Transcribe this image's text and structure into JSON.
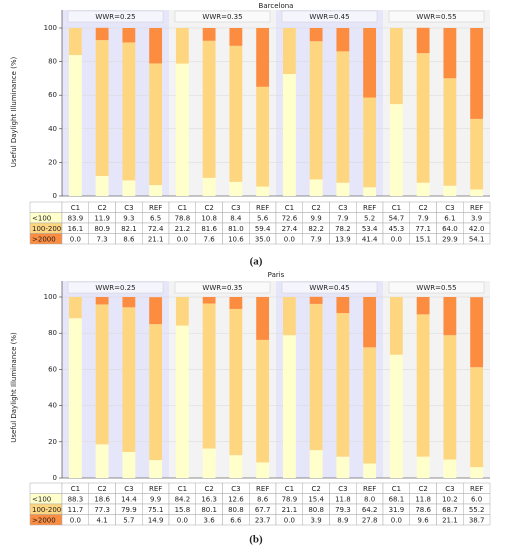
{
  "chart_data": [
    {
      "type": "bar",
      "stacked": true,
      "title": "Barcelona",
      "ylabel": "Useful Daylight Illuminance (%)",
      "caption": "(a)",
      "groups": [
        "WWR=0.25",
        "WWR=0.35",
        "WWR=0.45",
        "WWR=0.55"
      ],
      "categories": [
        "C1",
        "C2",
        "C3",
        "REF",
        "C1",
        "C2",
        "C3",
        "REF",
        "C1",
        "C2",
        "C3",
        "REF",
        "C1",
        "C2",
        "C3",
        "REF"
      ],
      "ylim": [
        0,
        100
      ],
      "yticks": [
        0,
        20,
        40,
        60,
        80,
        100
      ],
      "grid": true,
      "series": [
        {
          "name": "<100",
          "color": "#ffffcc",
          "values": [
            83.9,
            11.9,
            9.3,
            6.5,
            78.8,
            10.8,
            8.4,
            5.6,
            72.6,
            9.9,
            7.9,
            5.2,
            54.7,
            7.9,
            6.1,
            3.9
          ],
          "value_labels": [
            "83.9",
            "11.9",
            "9.3",
            "6.5",
            "78.8",
            "10.8",
            "8.4",
            "5.6",
            "72.6",
            "9.9",
            "7.9",
            "5.2",
            "54.7",
            "7.9",
            "6.1",
            "3.9"
          ]
        },
        {
          "name": "100-2000",
          "color": "#fed680",
          "values": [
            16.1,
            80.9,
            82.1,
            72.4,
            21.2,
            81.6,
            81.0,
            59.4,
            27.4,
            82.2,
            78.2,
            53.4,
            45.3,
            77.1,
            64.0,
            42.0
          ],
          "value_labels": [
            "16.1",
            "80.9",
            "82.1",
            "72.4",
            "21.2",
            "81.6",
            "81.0",
            "59.4",
            "27.4",
            "82.2",
            "78.2",
            "53.4",
            "45.3",
            "77.1",
            "64.0",
            "42.0"
          ]
        },
        {
          "name": ">2000",
          "color": "#fb8c40",
          "values": [
            0.0,
            7.3,
            8.6,
            21.1,
            0.0,
            7.6,
            10.6,
            35.0,
            0.0,
            7.9,
            13.9,
            41.4,
            0.0,
            15.1,
            29.9,
            54.1
          ],
          "value_labels": [
            "0.0",
            "7.3",
            "8.6",
            "21.1",
            "0.0",
            "7.6",
            "10.6",
            "35.0",
            "0.0",
            "7.9",
            "13.9",
            "41.4",
            "0.0",
            "15.1",
            "29.9",
            "54.1"
          ]
        }
      ]
    },
    {
      "type": "bar",
      "stacked": true,
      "title": "Paris",
      "ylabel": "Useful Daylight Illuminance (%)",
      "caption": "(b)",
      "groups": [
        "WWR=0.25",
        "WWR=0.35",
        "WWR=0.45",
        "WWR=0.55"
      ],
      "categories": [
        "C1",
        "C2",
        "C3",
        "REF",
        "C1",
        "C2",
        "C3",
        "REF",
        "C1",
        "C2",
        "C3",
        "REF",
        "C1",
        "C2",
        "C3",
        "REF"
      ],
      "ylim": [
        0,
        100
      ],
      "yticks": [
        0,
        20,
        40,
        60,
        80,
        100
      ],
      "grid": true,
      "series": [
        {
          "name": "<100",
          "color": "#ffffcc",
          "values": [
            88.3,
            18.6,
            14.4,
            9.9,
            84.2,
            16.3,
            12.6,
            8.6,
            78.9,
            15.4,
            11.8,
            8.0,
            68.1,
            11.8,
            10.2,
            6.0
          ],
          "value_labels": [
            "88.3",
            "18.6",
            "14.4",
            "9.9",
            "84.2",
            "16.3",
            "12.6",
            "8.6",
            "78.9",
            "15.4",
            "11.8",
            "8.0",
            "68.1",
            "11.8",
            "10.2",
            "6.0"
          ]
        },
        {
          "name": "100-2000",
          "color": "#fed680",
          "values": [
            11.7,
            77.3,
            79.9,
            75.1,
            15.8,
            80.1,
            80.8,
            67.7,
            21.1,
            80.8,
            79.3,
            64.2,
            31.9,
            78.6,
            68.7,
            55.2
          ],
          "value_labels": [
            "11.7",
            "77.3",
            "79.9",
            "75.1",
            "15.8",
            "80.1",
            "80.8",
            "67.7",
            "21.1",
            "80.8",
            "79.3",
            "64.2",
            "31.9",
            "78.6",
            "68.7",
            "55.2"
          ]
        },
        {
          "name": ">2000",
          "color": "#fb8c40",
          "values": [
            0.0,
            4.1,
            5.7,
            14.9,
            0.0,
            3.6,
            6.6,
            23.7,
            0.0,
            3.9,
            8.9,
            27.8,
            0.0,
            9.6,
            21.1,
            38.7
          ],
          "value_labels": [
            "0.0",
            "4.1",
            "5.7",
            "14.9",
            "0.0",
            "3.6",
            "6.6",
            "23.7",
            "0.0",
            "3.9",
            "8.9",
            "27.8",
            "0.0",
            "9.6",
            "21.1",
            "38.7"
          ]
        }
      ]
    }
  ]
}
